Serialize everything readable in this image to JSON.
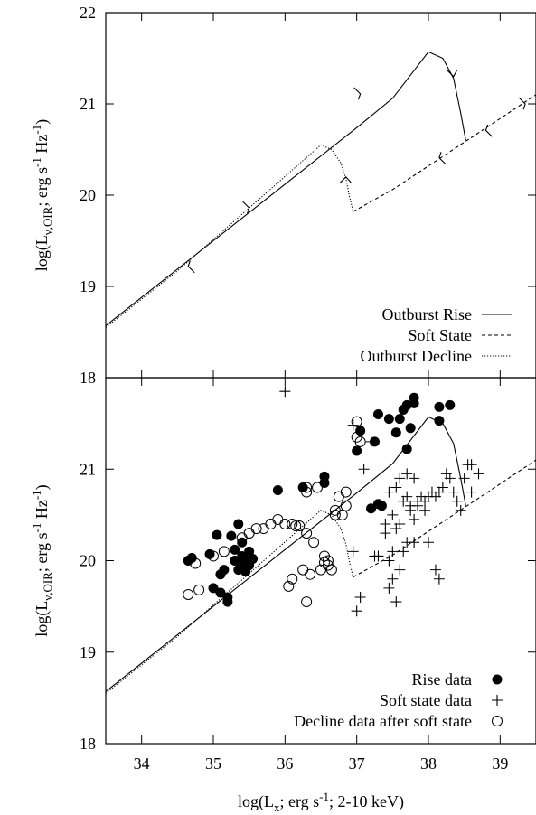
{
  "chart_data": [
    {
      "type": "line",
      "panel": "top",
      "xlabel": "",
      "ylabel": "log(Lν,OIR; erg s-1 Hz-1)",
      "xlim": [
        33.5,
        39.5
      ],
      "ylim": [
        18,
        22
      ],
      "yticks": [
        "18",
        "19",
        "20",
        "21",
        "22"
      ],
      "legend_position": "bottom-right",
      "series": [
        {
          "name": "Outburst Rise",
          "style": "solid",
          "x": [
            33.5,
            34.0,
            35.0,
            36.0,
            37.0,
            37.5,
            38.0,
            38.2,
            38.35,
            38.45,
            38.52
          ],
          "y": [
            18.57,
            18.88,
            19.5,
            20.12,
            20.74,
            21.06,
            21.57,
            21.5,
            21.28,
            20.9,
            20.6
          ]
        },
        {
          "name": "Soft State",
          "style": "dashed",
          "x": [
            36.95,
            37.5,
            38.0,
            38.5,
            39.0,
            39.5
          ],
          "y": [
            19.82,
            20.06,
            20.32,
            20.58,
            20.84,
            21.1
          ]
        },
        {
          "name": "Outburst Decline",
          "style": "dotted",
          "x": [
            33.5,
            34.5,
            35.5,
            36.5,
            36.65,
            36.78,
            36.85,
            36.9,
            36.95
          ],
          "y": [
            18.55,
            19.17,
            19.86,
            20.55,
            20.5,
            20.35,
            20.18,
            19.98,
            19.82
          ]
        }
      ],
      "arrows": [
        {
          "x": 34.65,
          "y": 19.22,
          "direction": "left"
        },
        {
          "x": 35.5,
          "y": 19.86,
          "direction": "right"
        },
        {
          "x": 37.05,
          "y": 21.11,
          "direction": "right"
        },
        {
          "x": 38.35,
          "y": 21.3,
          "direction": "down"
        },
        {
          "x": 38.15,
          "y": 20.41,
          "direction": "left"
        },
        {
          "x": 38.8,
          "y": 20.71,
          "direction": "left"
        },
        {
          "x": 39.35,
          "y": 21.0,
          "direction": "right"
        },
        {
          "x": 36.85,
          "y": 20.2,
          "direction": "up"
        }
      ]
    },
    {
      "type": "scatter",
      "panel": "bottom",
      "xlabel": "log(Lx; erg s-1; 2-10 keV)",
      "ylabel": "log(Lν,OIR; erg s-1 Hz-1)",
      "xlim": [
        33.5,
        39.5
      ],
      "ylim": [
        18,
        22
      ],
      "xticks": [
        "34",
        "35",
        "36",
        "37",
        "38",
        "39"
      ],
      "yticks": [
        "18",
        "19",
        "20",
        "21"
      ],
      "legend_position": "bottom-right",
      "series": [
        {
          "name": "Rise data",
          "marker": "filled-circle",
          "points": [
            [
              34.65,
              20.0
            ],
            [
              34.7,
              20.03
            ],
            [
              34.95,
              20.07
            ],
            [
              35.0,
              19.7
            ],
            [
              35.05,
              20.28
            ],
            [
              35.1,
              19.65
            ],
            [
              35.1,
              19.85
            ],
            [
              35.15,
              19.9
            ],
            [
              35.2,
              19.55
            ],
            [
              35.2,
              19.6
            ],
            [
              35.25,
              20.27
            ],
            [
              35.3,
              20.0
            ],
            [
              35.3,
              20.12
            ],
            [
              35.35,
              20.4
            ],
            [
              35.4,
              19.95
            ],
            [
              35.4,
              20.05
            ],
            [
              35.45,
              20.0
            ],
            [
              35.45,
              19.88
            ],
            [
              35.5,
              20.1
            ],
            [
              35.5,
              19.95
            ],
            [
              35.55,
              20.02
            ],
            [
              35.4,
              20.2
            ],
            [
              35.35,
              19.9
            ],
            [
              35.9,
              20.77
            ],
            [
              36.25,
              20.8
            ],
            [
              36.55,
              20.85
            ],
            [
              36.55,
              20.92
            ],
            [
              37.0,
              21.2
            ],
            [
              37.05,
              21.42
            ],
            [
              37.2,
              20.57
            ],
            [
              37.25,
              21.3
            ],
            [
              37.3,
              20.62
            ],
            [
              37.35,
              20.6
            ],
            [
              37.3,
              21.6
            ],
            [
              37.45,
              21.55
            ],
            [
              37.55,
              21.4
            ],
            [
              37.6,
              21.55
            ],
            [
              37.65,
              21.65
            ],
            [
              37.7,
              21.7
            ],
            [
              37.7,
              21.22
            ],
            [
              37.8,
              21.78
            ],
            [
              37.8,
              21.72
            ],
            [
              38.15,
              21.53
            ],
            [
              38.15,
              21.68
            ],
            [
              38.3,
              21.7
            ],
            [
              37.75,
              21.45
            ]
          ]
        },
        {
          "name": "Soft state data",
          "marker": "plus",
          "points": [
            [
              36.0,
              21.85
            ],
            [
              36.95,
              21.48
            ],
            [
              37.2,
              21.3
            ],
            [
              37.1,
              21.0
            ],
            [
              37.25,
              20.05
            ],
            [
              37.3,
              20.05
            ],
            [
              37.05,
              19.6
            ],
            [
              37.0,
              19.45
            ],
            [
              36.95,
              20.1
            ],
            [
              37.4,
              20.3
            ],
            [
              37.4,
              20.4
            ],
            [
              37.45,
              19.7
            ],
            [
              37.45,
              20.0
            ],
            [
              37.5,
              19.8
            ],
            [
              37.5,
              20.1
            ],
            [
              37.5,
              20.5
            ],
            [
              37.55,
              20.35
            ],
            [
              37.55,
              20.8
            ],
            [
              37.55,
              19.55
            ],
            [
              37.6,
              19.9
            ],
            [
              37.6,
              20.4
            ],
            [
              37.6,
              20.9
            ],
            [
              37.65,
              20.1
            ],
            [
              37.65,
              20.65
            ],
            [
              37.7,
              20.2
            ],
            [
              37.7,
              20.7
            ],
            [
              37.7,
              20.95
            ],
            [
              37.75,
              20.55
            ],
            [
              37.75,
              20.6
            ],
            [
              37.8,
              20.2
            ],
            [
              37.8,
              20.45
            ],
            [
              37.85,
              20.6
            ],
            [
              37.85,
              20.65
            ],
            [
              37.9,
              20.7
            ],
            [
              37.95,
              20.65
            ],
            [
              38.0,
              20.7
            ],
            [
              38.05,
              20.75
            ],
            [
              38.1,
              20.7
            ],
            [
              38.15,
              20.75
            ],
            [
              38.2,
              20.8
            ],
            [
              38.25,
              20.95
            ],
            [
              38.3,
              20.9
            ],
            [
              38.35,
              20.75
            ],
            [
              38.4,
              20.65
            ],
            [
              38.45,
              20.55
            ],
            [
              38.5,
              20.9
            ],
            [
              38.55,
              21.05
            ],
            [
              38.6,
              21.05
            ],
            [
              38.6,
              20.75
            ],
            [
              38.1,
              19.9
            ],
            [
              38.15,
              19.8
            ],
            [
              38.0,
              20.2
            ],
            [
              37.95,
              20.55
            ],
            [
              37.45,
              20.75
            ],
            [
              38.7,
              20.95
            ],
            [
              37.8,
              20.9
            ]
          ]
        },
        {
          "name": "Decline data after soft state",
          "marker": "open-circle",
          "points": [
            [
              34.65,
              19.63
            ],
            [
              34.8,
              19.68
            ],
            [
              34.75,
              19.97
            ],
            [
              35.0,
              20.05
            ],
            [
              35.15,
              20.1
            ],
            [
              35.4,
              20.25
            ],
            [
              35.5,
              20.3
            ],
            [
              35.6,
              20.35
            ],
            [
              35.7,
              20.35
            ],
            [
              35.8,
              20.4
            ],
            [
              35.9,
              20.45
            ],
            [
              36.0,
              20.4
            ],
            [
              36.1,
              20.4
            ],
            [
              36.15,
              20.38
            ],
            [
              36.2,
              20.38
            ],
            [
              36.05,
              19.72
            ],
            [
              36.1,
              19.8
            ],
            [
              36.25,
              19.9
            ],
            [
              36.3,
              19.55
            ],
            [
              36.3,
              20.3
            ],
            [
              36.3,
              20.75
            ],
            [
              36.3,
              20.8
            ],
            [
              36.4,
              20.2
            ],
            [
              36.45,
              20.8
            ],
            [
              36.5,
              19.9
            ],
            [
              36.55,
              19.98
            ],
            [
              36.55,
              20.05
            ],
            [
              36.6,
              19.95
            ],
            [
              36.6,
              20.0
            ],
            [
              36.65,
              19.9
            ],
            [
              36.7,
              20.5
            ],
            [
              36.75,
              20.7
            ],
            [
              36.8,
              20.5
            ],
            [
              36.85,
              20.75
            ],
            [
              36.85,
              20.6
            ],
            [
              36.7,
              20.55
            ],
            [
              37.0,
              21.35
            ],
            [
              37.0,
              21.52
            ],
            [
              37.05,
              21.3
            ],
            [
              36.35,
              19.85
            ]
          ]
        }
      ],
      "model_curves": [
        {
          "style": "solid",
          "x": [
            33.5,
            34.0,
            35.0,
            36.0,
            37.0,
            37.5,
            38.0,
            38.2,
            38.35,
            38.45,
            38.52
          ],
          "y": [
            18.57,
            18.88,
            19.5,
            20.12,
            20.74,
            21.06,
            21.57,
            21.5,
            21.28,
            20.9,
            20.6
          ]
        },
        {
          "style": "dashed",
          "x": [
            36.95,
            37.5,
            38.0,
            38.5,
            39.0,
            39.5
          ],
          "y": [
            19.82,
            20.06,
            20.32,
            20.58,
            20.84,
            21.1
          ]
        },
        {
          "style": "dotted",
          "x": [
            33.5,
            34.5,
            35.5,
            36.5,
            36.65,
            36.78,
            36.85,
            36.9,
            36.95
          ],
          "y": [
            18.55,
            19.17,
            19.86,
            20.55,
            20.5,
            20.35,
            20.18,
            19.98,
            19.82
          ]
        }
      ]
    }
  ]
}
